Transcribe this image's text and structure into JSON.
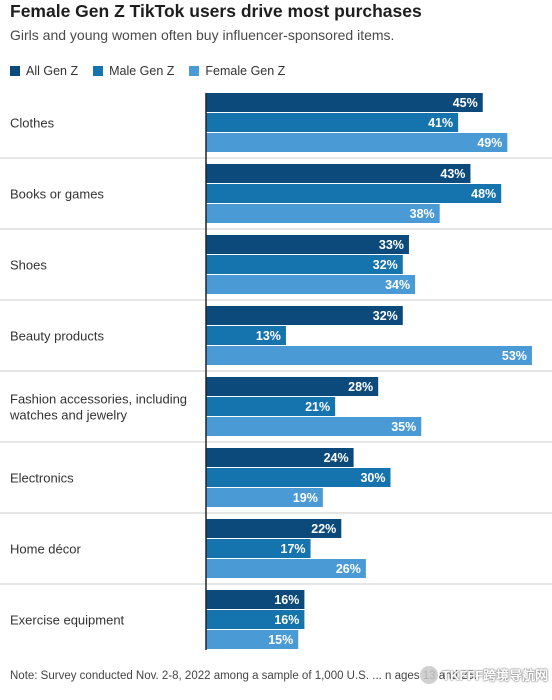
{
  "title": "Female Gen Z TikTok users drive most purchases",
  "subtitle": "Girls and young women often buy influencer-sponsored items.",
  "note": "Note: Survey conducted Nov. 2-8, 2022 among a sample of 1,000 U.S. ... n ages 13 and 25.",
  "watermark": "TKFFF跨境导航网",
  "colors": {
    "all": "#0b4a7b",
    "male": "#1574ad",
    "female": "#4a9ad6",
    "axis": "#222222",
    "separator": "#cccccc"
  },
  "chart_data": {
    "type": "bar",
    "orientation": "horizontal",
    "title": "Female Gen Z TikTok users drive most purchases",
    "subtitle": "Girls and young women often buy influencer-sponsored items.",
    "legend_position": "top-left",
    "value_suffix": "%",
    "xlim": [
      0,
      53
    ],
    "grid": false,
    "categories": [
      [
        "Clothes"
      ],
      [
        "Books or games"
      ],
      [
        "Shoes"
      ],
      [
        "Beauty products"
      ],
      [
        "Fashion accessories, including",
        "watches and jewelry"
      ],
      [
        "Electronics"
      ],
      [
        "Home décor"
      ],
      [
        "Exercise equipment"
      ]
    ],
    "series": [
      {
        "name": "All Gen Z",
        "values": [
          45,
          43,
          33,
          32,
          28,
          24,
          22,
          16
        ]
      },
      {
        "name": "Male Gen Z",
        "values": [
          41,
          48,
          32,
          13,
          21,
          30,
          17,
          16
        ]
      },
      {
        "name": "Female Gen Z",
        "values": [
          49,
          38,
          34,
          53,
          35,
          19,
          26,
          15
        ]
      }
    ]
  }
}
